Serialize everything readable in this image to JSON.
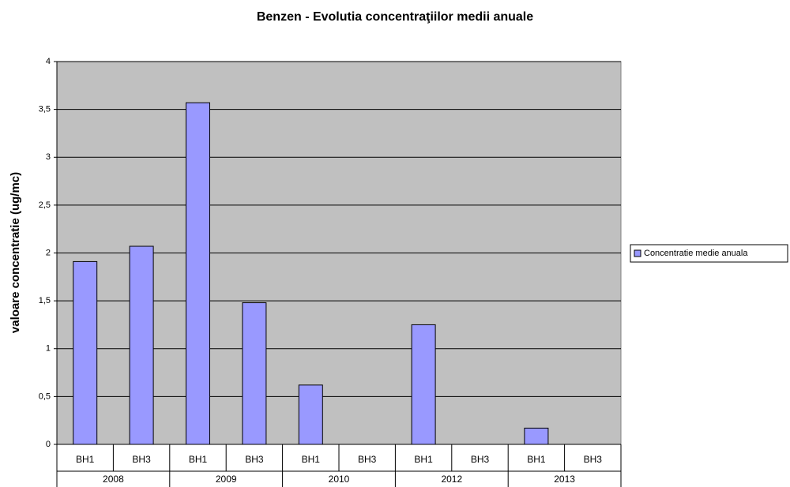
{
  "chart_data": {
    "type": "bar",
    "title": "Benzen - Evolutia concentraţiilor medii anuale",
    "y_label": "valoare concentratie (ug/mc)",
    "categories": [
      "BH1",
      "BH3",
      "BH1",
      "BH3",
      "BH1",
      "BH3",
      "BH1",
      "BH3",
      "BH1",
      "BH3"
    ],
    "groups": [
      "2008",
      "2009",
      "2010",
      "2012",
      "2013"
    ],
    "series": [
      {
        "name": "Concentratie medie anuala",
        "color": "#9999ff",
        "values": [
          1.91,
          2.07,
          3.57,
          1.48,
          0.62,
          null,
          1.25,
          null,
          0.17,
          null
        ]
      }
    ],
    "ylim": [
      0,
      4
    ],
    "yticks": [
      0,
      {
        "value": 0.5,
        "label": "0,5"
      },
      1,
      {
        "value": 1.5,
        "label": "1,5"
      },
      2,
      {
        "value": 2.5,
        "label": "2,5"
      },
      3,
      {
        "value": 3.5,
        "label": "3,5"
      },
      4
    ],
    "grid": true,
    "legend": "right",
    "plot_background": "#c0c0c0"
  }
}
